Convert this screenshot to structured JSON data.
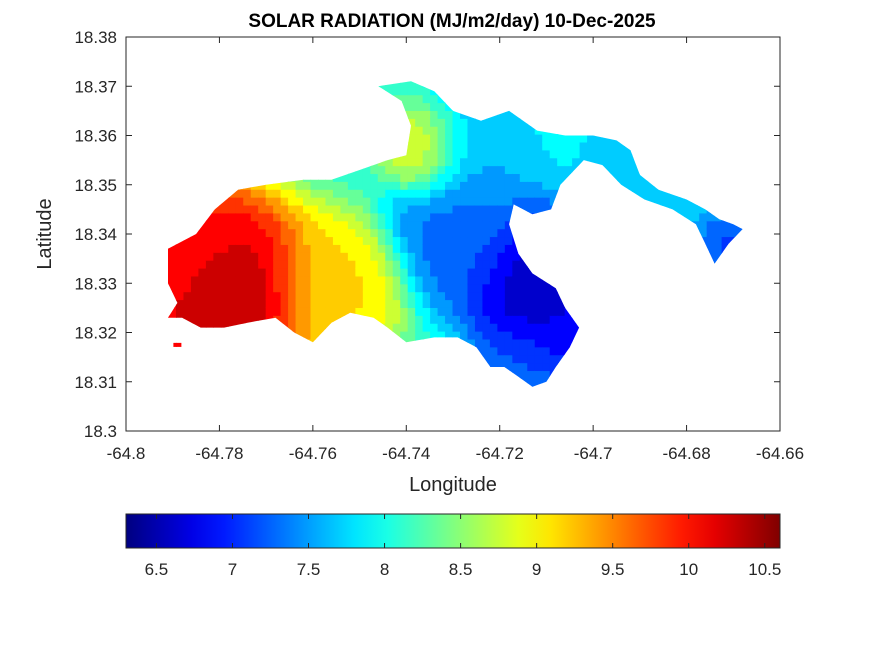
{
  "chart_data": {
    "type": "heatmap",
    "title": "SOLAR RADIATION (MJ/m2/day) 10-Dec-2025",
    "xlabel": "Longitude",
    "ylabel": "Latitude",
    "xlim": [
      -64.8,
      -64.66
    ],
    "ylim": [
      18.3,
      18.38
    ],
    "xticks": [
      -64.8,
      -64.78,
      -64.76,
      -64.74,
      -64.72,
      -64.7,
      -64.68,
      -64.66
    ],
    "xtick_labels": [
      "-64.8",
      "-64.78",
      "-64.76",
      "-64.74",
      "-64.72",
      "-64.7",
      "-64.68",
      "-64.66"
    ],
    "yticks": [
      18.3,
      18.31,
      18.32,
      18.33,
      18.34,
      18.35,
      18.36,
      18.37,
      18.38
    ],
    "ytick_labels": [
      "18.3",
      "18.31",
      "18.32",
      "18.33",
      "18.34",
      "18.35",
      "18.36",
      "18.37",
      "18.38"
    ],
    "colorbar": {
      "placement": "bottom",
      "colormap": "jet",
      "range": [
        6.3,
        10.6
      ],
      "ticks": [
        6.5,
        7,
        7.5,
        8,
        8.5,
        9,
        9.5,
        10,
        10.5
      ],
      "tick_labels": [
        "6.5",
        "7",
        "7.5",
        "8",
        "8.5",
        "9",
        "9.5",
        "10",
        "10.5"
      ]
    },
    "land_outline": [
      [
        -64.791,
        18.337
      ],
      [
        -64.785,
        18.34
      ],
      [
        -64.781,
        18.345
      ],
      [
        -64.776,
        18.349
      ],
      [
        -64.77,
        18.35
      ],
      [
        -64.762,
        18.351
      ],
      [
        -64.756,
        18.351
      ],
      [
        -64.75,
        18.353
      ],
      [
        -64.744,
        18.355
      ],
      [
        -64.74,
        18.356
      ],
      [
        -64.739,
        18.362
      ],
      [
        -64.741,
        18.367
      ],
      [
        -64.746,
        18.37
      ],
      [
        -64.739,
        18.371
      ],
      [
        -64.734,
        18.369
      ],
      [
        -64.73,
        18.365
      ],
      [
        -64.724,
        18.363
      ],
      [
        -64.718,
        18.365
      ],
      [
        -64.712,
        18.361
      ],
      [
        -64.706,
        18.36
      ],
      [
        -64.7,
        18.36
      ],
      [
        -64.695,
        18.359
      ],
      [
        -64.692,
        18.357
      ],
      [
        -64.69,
        18.352
      ],
      [
        -64.686,
        18.349
      ],
      [
        -64.68,
        18.347
      ],
      [
        -64.676,
        18.345
      ],
      [
        -64.673,
        18.343
      ],
      [
        -64.67,
        18.342
      ],
      [
        -64.668,
        18.341
      ],
      [
        -64.671,
        18.338
      ],
      [
        -64.674,
        18.334
      ],
      [
        -64.676,
        18.338
      ],
      [
        -64.678,
        18.342
      ],
      [
        -64.683,
        18.345
      ],
      [
        -64.689,
        18.347
      ],
      [
        -64.694,
        18.35
      ],
      [
        -64.698,
        18.354
      ],
      [
        -64.702,
        18.355
      ],
      [
        -64.707,
        18.35
      ],
      [
        -64.709,
        18.345
      ],
      [
        -64.713,
        18.344
      ],
      [
        -64.717,
        18.346
      ],
      [
        -64.718,
        18.342
      ],
      [
        -64.716,
        18.336
      ],
      [
        -64.713,
        18.332
      ],
      [
        -64.708,
        18.329
      ],
      [
        -64.706,
        18.325
      ],
      [
        -64.703,
        18.321
      ],
      [
        -64.705,
        18.317
      ],
      [
        -64.708,
        18.313
      ],
      [
        -64.71,
        18.31
      ],
      [
        -64.713,
        18.309
      ],
      [
        -64.716,
        18.311
      ],
      [
        -64.719,
        18.313
      ],
      [
        -64.722,
        18.313
      ],
      [
        -64.725,
        18.317
      ],
      [
        -64.729,
        18.319
      ],
      [
        -64.734,
        18.319
      ],
      [
        -64.74,
        18.318
      ],
      [
        -64.744,
        18.321
      ],
      [
        -64.747,
        18.323
      ],
      [
        -64.752,
        18.324
      ],
      [
        -64.756,
        18.322
      ],
      [
        -64.76,
        18.318
      ],
      [
        -64.764,
        18.32
      ],
      [
        -64.768,
        18.323
      ],
      [
        -64.774,
        18.322
      ],
      [
        -64.779,
        18.321
      ],
      [
        -64.784,
        18.321
      ],
      [
        -64.788,
        18.323
      ],
      [
        -64.791,
        18.323
      ],
      [
        -64.789,
        18.326
      ],
      [
        -64.791,
        18.33
      ]
    ],
    "islet": [
      -64.789,
      18.3175
    ],
    "field_sources": [
      {
        "lon": -64.779,
        "lat": 18.3285,
        "value": 10.55,
        "spread": 0.0095
      },
      {
        "lon": -64.786,
        "lat": 18.3355,
        "value": 10.0,
        "spread": 0.0065
      },
      {
        "lon": -64.7115,
        "lat": 18.33,
        "value": 6.4,
        "spread": 0.0075
      },
      {
        "lon": -64.706,
        "lat": 18.322,
        "value": 6.8,
        "spread": 0.006
      },
      {
        "lon": -64.715,
        "lat": 18.312,
        "value": 7.2,
        "spread": 0.005
      },
      {
        "lon": -64.736,
        "lat": 18.357,
        "value": 9.2,
        "spread": 0.0045
      },
      {
        "lon": -64.755,
        "lat": 18.329,
        "value": 9.2,
        "spread": 0.007
      },
      {
        "lon": -64.728,
        "lat": 18.34,
        "value": 7.2,
        "spread": 0.0075
      },
      {
        "lon": -64.686,
        "lat": 18.352,
        "value": 7.7,
        "spread": 0.01
      },
      {
        "lon": -64.671,
        "lat": 18.338,
        "value": 7.0,
        "spread": 0.0045
      },
      {
        "lon": -64.726,
        "lat": 18.356,
        "value": 7.6,
        "spread": 0.007
      }
    ],
    "background_value": 8.1
  }
}
